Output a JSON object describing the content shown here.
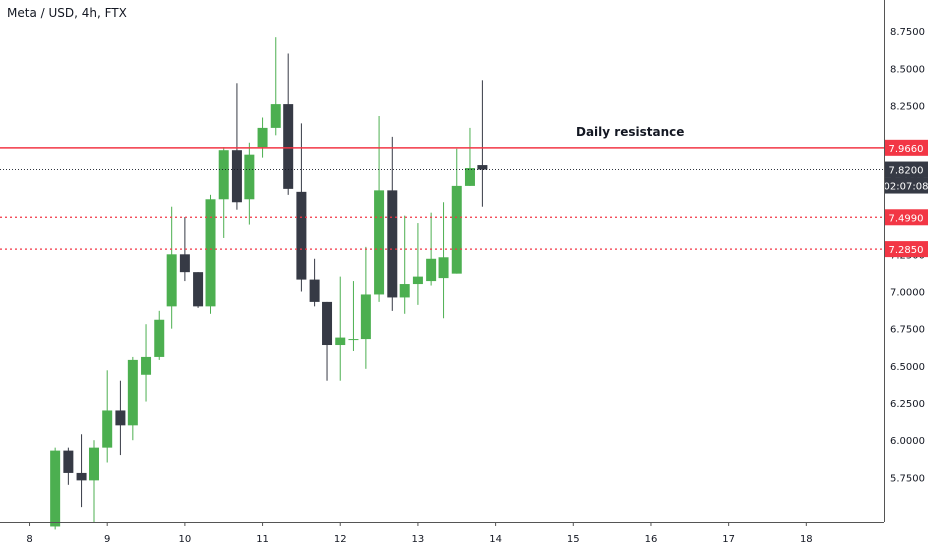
{
  "header": {
    "symbol": "Meta / USD, 4h, FTX"
  },
  "colors": {
    "up": "#4caf50",
    "down": "#363a45",
    "resistance": "#f23645",
    "current_line": "#131722",
    "badge_dark": "#363a45"
  },
  "chart_data": {
    "type": "candlestick",
    "title": "Meta / USD, 4h, FTX",
    "ylim": [
      5.45,
      8.96
    ],
    "xlim": [
      7.62,
      19.0
    ],
    "y_ticks": [
      "5.7500",
      "6.0000",
      "6.2500",
      "6.5000",
      "6.7500",
      "7.0000",
      "7.2500",
      "7.5000",
      "7.7500",
      "8.0000",
      "8.2500",
      "8.5000",
      "8.7500"
    ],
    "x_ticks": [
      "8",
      "9",
      "10",
      "11",
      "12",
      "13",
      "14",
      "15",
      "16",
      "17",
      "18"
    ],
    "candles": [
      {
        "t": 8.33,
        "o": 5.42,
        "h": 5.95,
        "l": 5.4,
        "c": 5.93
      },
      {
        "t": 8.5,
        "o": 5.93,
        "h": 5.95,
        "l": 5.7,
        "c": 5.78
      },
      {
        "t": 8.67,
        "o": 5.78,
        "h": 6.04,
        "l": 5.55,
        "c": 5.73
      },
      {
        "t": 8.83,
        "o": 5.73,
        "h": 6.0,
        "l": 5.45,
        "c": 5.95
      },
      {
        "t": 9.0,
        "o": 5.95,
        "h": 6.47,
        "l": 5.85,
        "c": 6.2
      },
      {
        "t": 9.17,
        "o": 6.2,
        "h": 6.4,
        "l": 5.9,
        "c": 6.1
      },
      {
        "t": 9.33,
        "o": 6.1,
        "h": 6.56,
        "l": 6.0,
        "c": 6.54
      },
      {
        "t": 9.5,
        "o": 6.44,
        "h": 6.78,
        "l": 6.26,
        "c": 6.56
      },
      {
        "t": 9.67,
        "o": 6.56,
        "h": 6.87,
        "l": 6.54,
        "c": 6.81
      },
      {
        "t": 9.83,
        "o": 6.9,
        "h": 7.57,
        "l": 6.75,
        "c": 7.25
      },
      {
        "t": 10.0,
        "o": 7.25,
        "h": 7.5,
        "l": 7.07,
        "c": 7.13
      },
      {
        "t": 10.17,
        "o": 7.13,
        "h": 7.13,
        "l": 6.89,
        "c": 6.9
      },
      {
        "t": 10.33,
        "o": 6.9,
        "h": 7.65,
        "l": 6.85,
        "c": 7.62
      },
      {
        "t": 10.5,
        "o": 7.62,
        "h": 7.97,
        "l": 7.36,
        "c": 7.95
      },
      {
        "t": 10.67,
        "o": 7.95,
        "h": 8.4,
        "l": 7.55,
        "c": 7.6
      },
      {
        "t": 10.83,
        "o": 7.62,
        "h": 8.0,
        "l": 7.45,
        "c": 7.92
      },
      {
        "t": 11.0,
        "o": 7.97,
        "h": 8.17,
        "l": 7.9,
        "c": 8.1
      },
      {
        "t": 11.17,
        "o": 8.1,
        "h": 8.71,
        "l": 8.05,
        "c": 8.26
      },
      {
        "t": 11.33,
        "o": 8.26,
        "h": 8.6,
        "l": 7.65,
        "c": 7.69
      },
      {
        "t": 11.5,
        "o": 7.67,
        "h": 8.13,
        "l": 7.0,
        "c": 7.08
      },
      {
        "t": 11.67,
        "o": 7.08,
        "h": 7.22,
        "l": 6.9,
        "c": 6.93
      },
      {
        "t": 11.83,
        "o": 6.93,
        "h": 6.93,
        "l": 6.4,
        "c": 6.64
      },
      {
        "t": 12.0,
        "o": 6.64,
        "h": 7.1,
        "l": 6.4,
        "c": 6.69
      },
      {
        "t": 12.17,
        "o": 6.68,
        "h": 7.07,
        "l": 6.6,
        "c": 6.68
      },
      {
        "t": 12.33,
        "o": 6.68,
        "h": 7.3,
        "l": 6.48,
        "c": 6.98
      },
      {
        "t": 12.5,
        "o": 6.98,
        "h": 8.18,
        "l": 6.93,
        "c": 7.68
      },
      {
        "t": 12.67,
        "o": 7.68,
        "h": 8.04,
        "l": 6.87,
        "c": 6.96
      },
      {
        "t": 12.83,
        "o": 6.96,
        "h": 7.51,
        "l": 6.85,
        "c": 7.05
      },
      {
        "t": 13.0,
        "o": 7.05,
        "h": 7.46,
        "l": 6.91,
        "c": 7.1
      },
      {
        "t": 13.17,
        "o": 7.07,
        "h": 7.53,
        "l": 7.04,
        "c": 7.22
      },
      {
        "t": 13.33,
        "o": 7.09,
        "h": 7.6,
        "l": 6.82,
        "c": 7.23
      },
      {
        "t": 13.5,
        "o": 7.12,
        "h": 7.96,
        "l": 7.12,
        "c": 7.71
      },
      {
        "t": 13.67,
        "o": 7.71,
        "h": 8.1,
        "l": 7.71,
        "c": 7.83
      },
      {
        "t": 13.83,
        "o": 7.85,
        "h": 8.42,
        "l": 7.57,
        "c": 7.82
      }
    ],
    "levels": [
      {
        "value": 7.966,
        "label": "7.9660",
        "style": "solid"
      },
      {
        "value": 7.499,
        "label": "7.4990",
        "style": "dotted"
      },
      {
        "value": 7.285,
        "label": "7.2850",
        "style": "dotted"
      }
    ],
    "current_price": {
      "value": 7.82,
      "label": "7.8200",
      "countdown": "02:07:08"
    },
    "annotation": "Daily resistance"
  }
}
